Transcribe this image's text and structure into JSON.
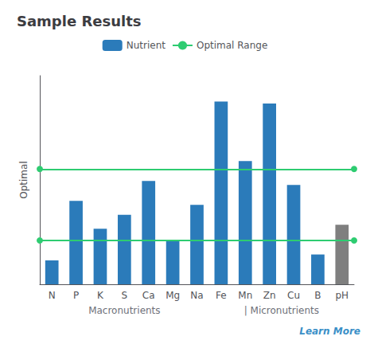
{
  "chart_data": {
    "type": "bar",
    "title": "Sample Results",
    "ylabel": "Optimal",
    "categories": [
      "N",
      "P",
      "K",
      "S",
      "Ca",
      "Mg",
      "Na",
      "Fe",
      "Mn",
      "Zn",
      "Cu",
      "B",
      "pH"
    ],
    "series": [
      {
        "name": "Nutrient",
        "color": "#2b7bba",
        "colors": [
          "#2b7bba",
          "#2b7bba",
          "#2b7bba",
          "#2b7bba",
          "#2b7bba",
          "#2b7bba",
          "#2b7bba",
          "#2b7bba",
          "#2b7bba",
          "#2b7bba",
          "#2b7bba",
          "#2b7bba",
          "#7f7f7f"
        ],
        "values": [
          0.12,
          0.42,
          0.28,
          0.35,
          0.52,
          0.22,
          0.4,
          0.92,
          0.62,
          0.91,
          0.5,
          0.15,
          0.3
        ]
      }
    ],
    "optimal_range": {
      "name": "Optimal Range",
      "color": "#2ecc71",
      "values": [
        0.22,
        0.58
      ]
    },
    "ylim": [
      0,
      1.05
    ],
    "yticks": [],
    "grid": false,
    "tick_labels": "x",
    "legend": "top",
    "annotations": [
      {
        "text": "Macronutrients"
      },
      {
        "text": "| Micronutrients"
      },
      {
        "text": "Learn More",
        "color": "#3a8fc7"
      }
    ]
  }
}
